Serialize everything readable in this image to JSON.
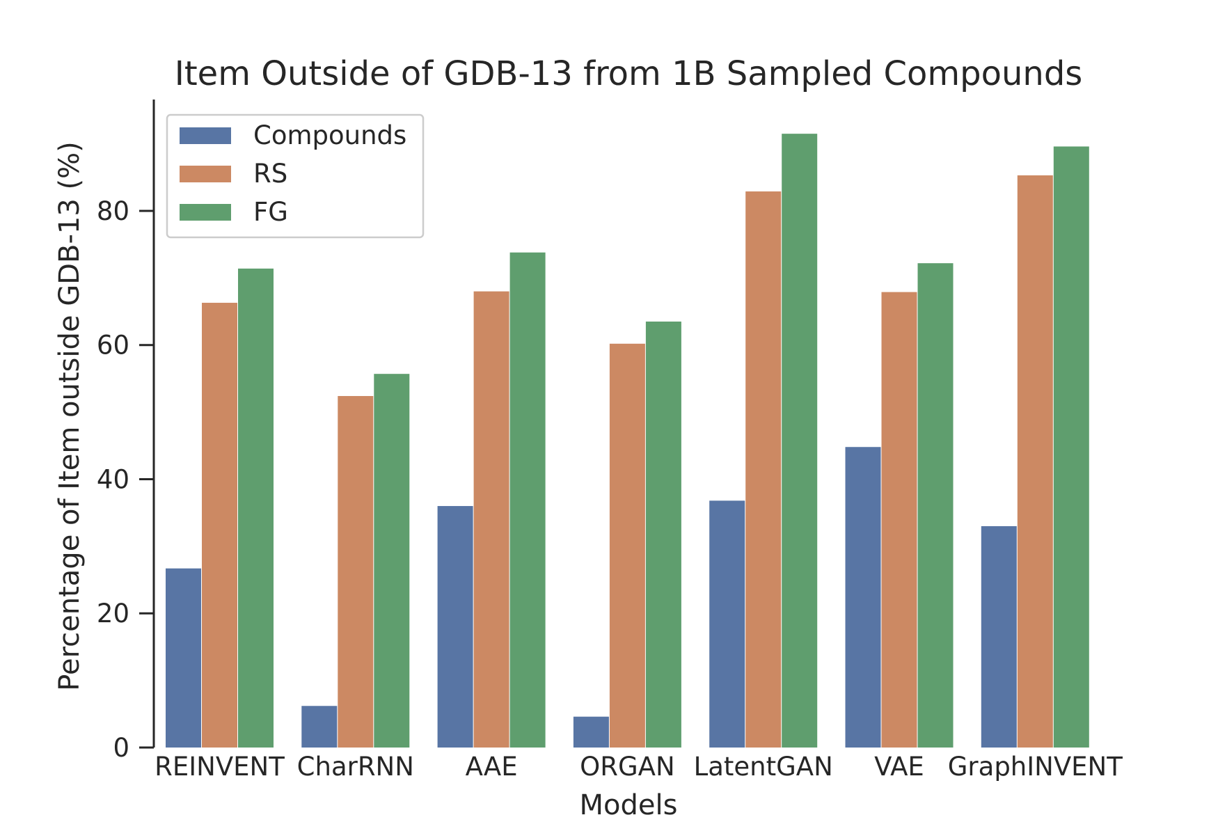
{
  "chart_data": {
    "type": "bar",
    "title": "Item Outside of GDB-13 from 1B Sampled Compounds",
    "xlabel": "Models",
    "ylabel": "Percentage of Item outside GDB-13 (%)",
    "categories": [
      "REINVENT",
      "CharRNN",
      "AAE",
      "ORGAN",
      "LatentGAN",
      "VAE",
      "GraphINVENT"
    ],
    "series": [
      {
        "name": "Compounds",
        "color": "#5875a4",
        "values": [
          26.7,
          6.2,
          36.0,
          4.6,
          36.8,
          44.8,
          33.0
        ]
      },
      {
        "name": "RS",
        "color": "#cc8963",
        "values": [
          66.3,
          52.4,
          68.0,
          60.2,
          82.9,
          67.9,
          85.3
        ]
      },
      {
        "name": "FG",
        "color": "#5f9e6e",
        "values": [
          71.4,
          55.7,
          73.8,
          63.5,
          91.5,
          72.2,
          89.6
        ]
      }
    ],
    "ylim": [
      0,
      96.6
    ],
    "yticks": [
      0,
      20,
      40,
      60,
      80
    ],
    "grid": false,
    "legend_position": "upper-left"
  }
}
